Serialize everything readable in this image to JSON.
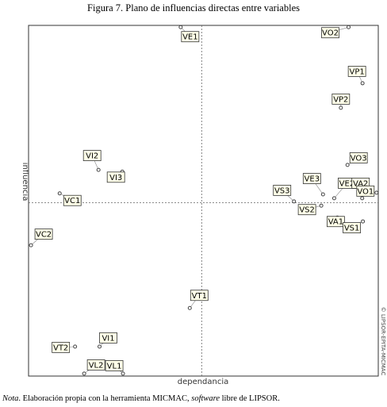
{
  "title": "Figura 7. Plano de influencias directas entre variables",
  "note": {
    "prefix": "Nota",
    "text_1": ". Elaboración propia con la herramienta MICMAC, ",
    "italic": "software",
    "text_2": " libre de LIPSOR."
  },
  "watermark": "© LIPSOR-EPITA-MICMAC",
  "chart_data": {
    "type": "scatter",
    "title": "Figura 7. Plano de influencias directas entre variables",
    "xlabel": "dependancia",
    "ylabel": "influencia",
    "xlim": [
      0,
      100
    ],
    "ylim": [
      0,
      100
    ],
    "axis_lines": {
      "x": 49.5,
      "y": 49.4
    },
    "grid": false,
    "points": [
      {
        "label": "VE1",
        "x": 43.5,
        "y": 99.5
      },
      {
        "label": "VO2",
        "x": 91.5,
        "y": 99.5
      },
      {
        "label": "VP1",
        "x": 95.5,
        "y": 83.5
      },
      {
        "label": "VP2",
        "x": 89.3,
        "y": 76.5
      },
      {
        "label": "VO3",
        "x": 91.2,
        "y": 60.2
      },
      {
        "label": "VI2",
        "x": 20.0,
        "y": 58.8
      },
      {
        "label": "VI3",
        "x": 26.8,
        "y": 58.3
      },
      {
        "label": "VS3",
        "x": 75.9,
        "y": 49.8
      },
      {
        "label": "VE3",
        "x": 84.2,
        "y": 51.8
      },
      {
        "label": "VE2",
        "x": 87.4,
        "y": 50.7
      },
      {
        "label": "VA2",
        "x": 95.4,
        "y": 50.7
      },
      {
        "label": "VO1",
        "x": 99.5,
        "y": 52.3
      },
      {
        "label": "VS2",
        "x": 83.7,
        "y": 48.6
      },
      {
        "label": "VA1",
        "x": 88.3,
        "y": 45.2
      },
      {
        "label": "VS1",
        "x": 95.6,
        "y": 44.1
      },
      {
        "label": "VC1",
        "x": 8.9,
        "y": 52.1
      },
      {
        "label": "VC2",
        "x": 0.7,
        "y": 37.3
      },
      {
        "label": "VT1",
        "x": 46.1,
        "y": 19.4
      },
      {
        "label": "VI1",
        "x": 20.3,
        "y": 8.4
      },
      {
        "label": "VT2",
        "x": 13.3,
        "y": 8.4
      },
      {
        "label": "VL2",
        "x": 15.9,
        "y": 0.7
      },
      {
        "label": "VL1",
        "x": 27.0,
        "y": 0.7
      }
    ]
  }
}
